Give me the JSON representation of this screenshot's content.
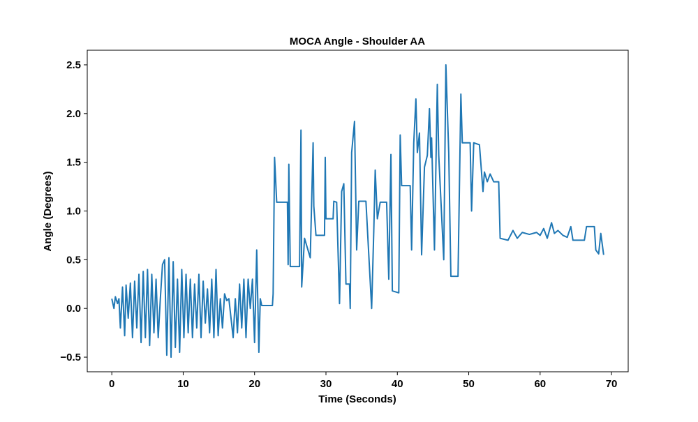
{
  "chart_data": {
    "type": "line",
    "title": "MOCA Angle - Shoulder AA",
    "x_label": "Time (Seconds)",
    "y_label": "Angle (Degrees)",
    "xlim": [
      -3.44,
      72.34
    ],
    "ylim": [
      -0.65,
      2.65
    ],
    "xticks": [
      0,
      10,
      20,
      30,
      40,
      50,
      60,
      70
    ],
    "yticks": [
      {
        "value": -0.5,
        "label": "−0.5"
      },
      {
        "value": 0,
        "label": "0.0"
      },
      {
        "value": 0.5,
        "label": "0.5"
      },
      {
        "value": 1,
        "label": "1.0"
      },
      {
        "value": 1.5,
        "label": "1.5"
      },
      {
        "value": 2,
        "label": "2.0"
      },
      {
        "value": 2.5,
        "label": "2.5"
      }
    ],
    "grid": false,
    "series": [
      {
        "color": "#1f77b4",
        "x": [
          0,
          0.3,
          0.5,
          0.8,
          1.0,
          1.2,
          1.5,
          1.8,
          2.0,
          2.3,
          2.6,
          2.9,
          3.2,
          3.5,
          3.8,
          4.1,
          4.4,
          4.7,
          5.0,
          5.3,
          5.6,
          5.9,
          6.2,
          6.5,
          6.8,
          7.1,
          7.4,
          7.7,
          8.0,
          8.3,
          8.6,
          8.9,
          9.2,
          9.5,
          9.8,
          10.1,
          10.4,
          10.7,
          11.0,
          11.3,
          11.6,
          11.9,
          12.2,
          12.5,
          12.8,
          13.1,
          13.4,
          13.7,
          14.0,
          14.3,
          14.6,
          14.9,
          15.2,
          15.5,
          15.8,
          16.1,
          16.4,
          16.7,
          17.0,
          17.3,
          17.6,
          17.9,
          18.2,
          18.5,
          18.8,
          19.1,
          19.4,
          19.7,
          20.0,
          20.3,
          20.6,
          20.8,
          21.0,
          22.5,
          22.6,
          22.8,
          23.1,
          24.6,
          24.7,
          24.8,
          25.0,
          26.3,
          26.5,
          26.6,
          27.0,
          27.8,
          28.2,
          28.3,
          28.6,
          29.8,
          29.9,
          30.0,
          31.0,
          31.1,
          31.5,
          31.9,
          32.2,
          32.5,
          32.8,
          33.3,
          33.4,
          33.6,
          34.0,
          34.3,
          34.6,
          35.0,
          35.6,
          36.4,
          36.7,
          36.9,
          37.2,
          37.6,
          38.5,
          38.8,
          39.1,
          39.3,
          40.2,
          40.4,
          40.6,
          41.8,
          42.0,
          42.3,
          42.6,
          42.8,
          43.1,
          43.4,
          43.8,
          44.2,
          44.5,
          44.7,
          44.8,
          45.2,
          45.6,
          45.8,
          46.5,
          46.8,
          47.2,
          47.5,
          48.5,
          48.9,
          49.1,
          50.2,
          50.4,
          50.7,
          51.5,
          52.0,
          52.2,
          52.6,
          53.0,
          53.5,
          54.2,
          54.4,
          55.5,
          56.2,
          56.8,
          57.5,
          58.5,
          59.5,
          60.0,
          60.5,
          61.0,
          61.6,
          62.0,
          62.5,
          63.2,
          63.8,
          64.3,
          64.6,
          66.2,
          66.5,
          67.6,
          67.8,
          68.2,
          68.5,
          68.9
        ],
        "values": [
          0.1,
          0.0,
          0.12,
          0.05,
          0.1,
          -0.2,
          0.22,
          -0.28,
          0.24,
          -0.1,
          0.26,
          -0.3,
          0.28,
          -0.2,
          0.35,
          -0.35,
          0.38,
          -0.3,
          0.4,
          -0.38,
          0.35,
          -0.25,
          0.3,
          -0.3,
          0.1,
          0.45,
          0.5,
          -0.48,
          0.52,
          -0.5,
          0.48,
          -0.4,
          0.3,
          -0.45,
          0.4,
          -0.3,
          0.35,
          -0.25,
          0.3,
          -0.3,
          0.25,
          -0.2,
          0.35,
          -0.3,
          0.28,
          -0.15,
          0.2,
          -0.25,
          0.3,
          -0.3,
          0.4,
          -0.28,
          0.1,
          -0.2,
          0.15,
          0.08,
          0.1,
          -0.1,
          -0.3,
          0.1,
          -0.25,
          0.25,
          -0.2,
          0.3,
          -0.3,
          0.3,
          0.0,
          0.3,
          -0.35,
          0.6,
          -0.45,
          0.1,
          0.03,
          0.03,
          0.15,
          1.55,
          1.09,
          1.09,
          0.45,
          1.48,
          0.43,
          0.43,
          1.83,
          0.22,
          0.72,
          0.52,
          1.7,
          1.05,
          0.75,
          0.75,
          1.55,
          0.92,
          0.92,
          1.1,
          1.09,
          0.05,
          1.2,
          1.28,
          0.25,
          0.25,
          0.0,
          1.6,
          1.92,
          0.6,
          1.1,
          1.1,
          1.1,
          0.0,
          0.8,
          1.42,
          0.92,
          1.09,
          1.09,
          0.3,
          1.58,
          0.18,
          0.16,
          1.78,
          1.26,
          1.26,
          0.6,
          1.7,
          2.15,
          1.6,
          1.8,
          0.55,
          1.45,
          1.57,
          2.05,
          1.55,
          1.75,
          0.6,
          2.3,
          1.57,
          0.5,
          2.5,
          1.6,
          0.33,
          0.33,
          2.2,
          1.7,
          1.7,
          1.0,
          1.7,
          1.68,
          1.2,
          1.4,
          1.3,
          1.38,
          1.3,
          1.3,
          0.72,
          0.7,
          0.8,
          0.72,
          0.78,
          0.76,
          0.78,
          0.75,
          0.82,
          0.72,
          0.88,
          0.77,
          0.8,
          0.75,
          0.73,
          0.84,
          0.7,
          0.7,
          0.84,
          0.84,
          0.6,
          0.56,
          0.77,
          0.55
        ]
      }
    ]
  }
}
